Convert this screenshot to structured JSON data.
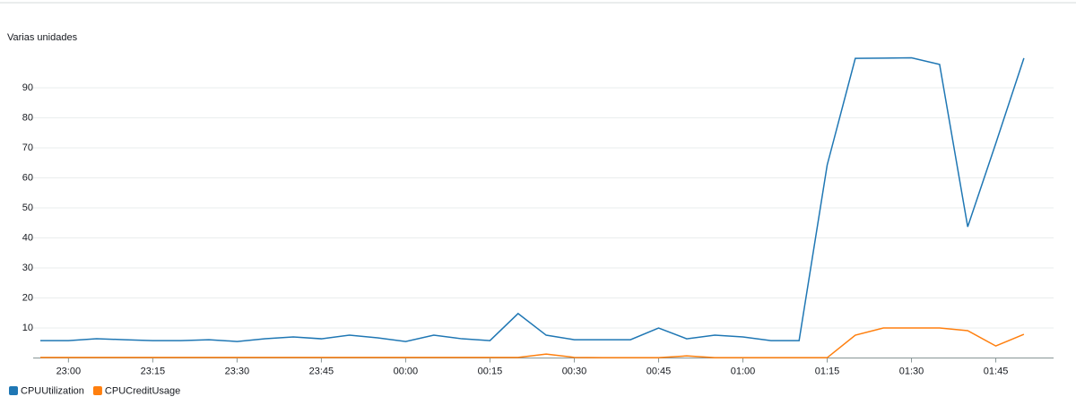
{
  "chart_data": {
    "type": "line",
    "ylabel": "Varias unidades",
    "x": [
      "22:55",
      "23:00",
      "23:05",
      "23:10",
      "23:15",
      "23:20",
      "23:25",
      "23:30",
      "23:35",
      "23:40",
      "23:45",
      "23:50",
      "23:55",
      "00:00",
      "00:05",
      "00:10",
      "00:15",
      "00:20",
      "00:25",
      "00:30",
      "00:35",
      "00:40",
      "00:45",
      "00:50",
      "00:55",
      "01:00",
      "01:05",
      "01:10",
      "01:15",
      "01:20",
      "01:25",
      "01:30",
      "01:35",
      "01:40",
      "01:45",
      "01:50"
    ],
    "xticks": [
      "23:00",
      "23:15",
      "23:30",
      "23:45",
      "00:00",
      "00:15",
      "00:30",
      "00:45",
      "01:00",
      "01:15",
      "01:30",
      "01:45"
    ],
    "ylim": [
      0,
      100
    ],
    "yticks": [
      10,
      20,
      30,
      40,
      50,
      60,
      70,
      80,
      90
    ],
    "grid": true,
    "legend": "bottom-left",
    "series": [
      {
        "name": "CPUUtilization",
        "color": "#1f77b4",
        "values": [
          5.8,
          5.8,
          6.4,
          6.1,
          5.8,
          5.8,
          6.1,
          5.5,
          6.4,
          7.0,
          6.4,
          7.6,
          6.7,
          5.5,
          7.6,
          6.4,
          5.8,
          14.8,
          7.6,
          6.1,
          6.1,
          6.1,
          10.0,
          6.4,
          7.6,
          7.0,
          5.8,
          5.8,
          64.3,
          99.8,
          99.9,
          100,
          97.8,
          43.7,
          71.5,
          99.9
        ]
      },
      {
        "name": "CPUCreditUsage",
        "color": "#ff7f0e",
        "values": [
          0.2,
          0.2,
          0.2,
          0.2,
          0.2,
          0.2,
          0.2,
          0.2,
          0.2,
          0.2,
          0.2,
          0.2,
          0.2,
          0.2,
          0.2,
          0.2,
          0.2,
          0.2,
          1.3,
          0.2,
          0.1,
          0.1,
          0.1,
          0.7,
          0.1,
          0.1,
          0.1,
          0.1,
          0.1,
          7.6,
          10.0,
          10.0,
          10.0,
          9.1,
          4.0,
          7.9
        ]
      }
    ]
  }
}
